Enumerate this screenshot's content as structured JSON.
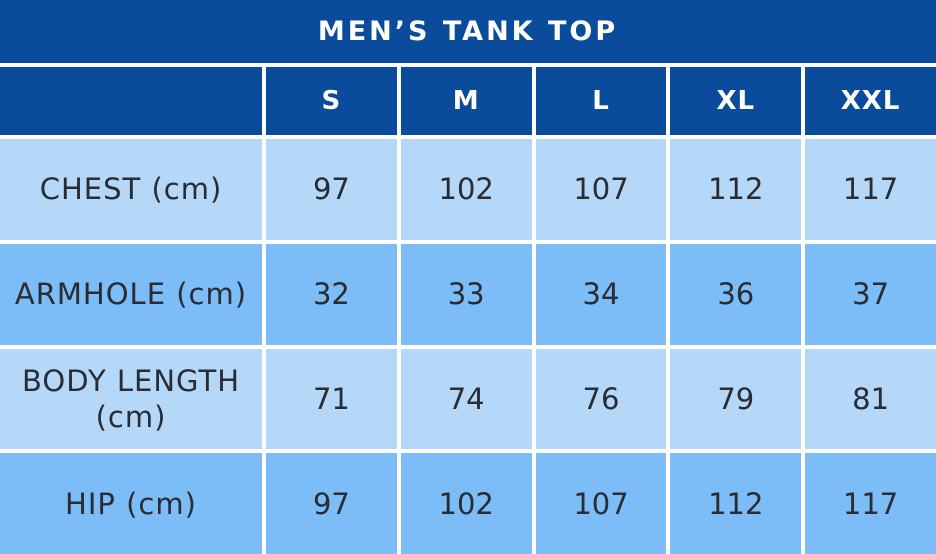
{
  "title": "MEN’S TANK TOP",
  "colors": {
    "header_bg": "#0b4b9b",
    "header_text": "#ffffff",
    "row_light": "#b5d8f8",
    "row_medium": "#7cbcf7",
    "body_text": "#2a2c33",
    "grid_gap": "#ffffff"
  },
  "chart_data": {
    "type": "table",
    "title": "MEN’S TANK TOP",
    "columns": [
      "",
      "S",
      "M",
      "L",
      "XL",
      "XXL"
    ],
    "rows": [
      {
        "label": "CHEST (cm)",
        "values": [
          97,
          102,
          107,
          112,
          117
        ]
      },
      {
        "label": "ARMHOLE (cm)",
        "values": [
          32,
          33,
          34,
          36,
          37
        ]
      },
      {
        "label": "BODY LENGTH (cm)",
        "values": [
          71,
          74,
          76,
          79,
          81
        ]
      },
      {
        "label": "HIP (cm)",
        "values": [
          97,
          102,
          107,
          112,
          117
        ]
      }
    ]
  }
}
